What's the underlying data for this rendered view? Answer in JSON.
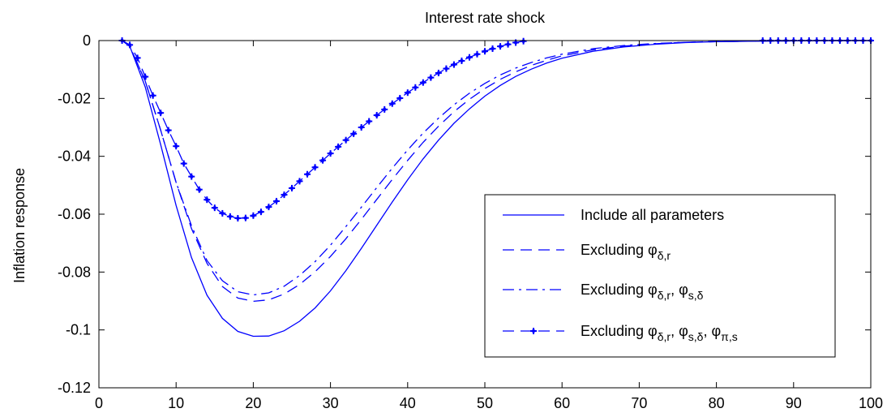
{
  "chart_data": {
    "type": "line",
    "title": "Interest rate shock",
    "xlabel": "",
    "ylabel": "Inflation response",
    "xlim": [
      0,
      100
    ],
    "ylim": [
      -0.12,
      0
    ],
    "grid": false,
    "x_ticks": [
      0,
      10,
      20,
      30,
      40,
      50,
      60,
      70,
      80,
      90,
      100
    ],
    "x_tick_labels": [
      "0",
      "10",
      "20",
      "30",
      "40",
      "50",
      "60",
      "70",
      "80",
      "90",
      "100"
    ],
    "y_ticks": [
      0,
      -0.02,
      -0.04,
      -0.06,
      -0.08,
      -0.1,
      -0.12
    ],
    "y_tick_labels": [
      "0",
      "-0.02",
      "-0.04",
      "-0.06",
      "-0.08",
      "-0.1",
      "-0.12"
    ],
    "line_color": "#0000ff",
    "legend_position": "bottom-right",
    "series": [
      {
        "name": "Include all parameters",
        "style": "solid",
        "x": [
          3,
          4,
          6,
          8,
          10,
          12,
          14,
          16,
          18,
          20,
          22,
          24,
          26,
          28,
          30,
          32,
          34,
          36,
          38,
          40,
          42,
          44,
          46,
          48,
          50,
          52,
          54,
          56,
          58,
          60,
          64,
          68,
          72,
          76,
          80,
          85,
          90,
          95,
          100
        ],
        "y": [
          0,
          -0.002,
          -0.016,
          -0.036,
          -0.057,
          -0.075,
          -0.088,
          -0.096,
          -0.1005,
          -0.1022,
          -0.1021,
          -0.1003,
          -0.097,
          -0.0924,
          -0.0865,
          -0.0795,
          -0.0718,
          -0.0638,
          -0.0558,
          -0.0481,
          -0.0409,
          -0.0344,
          -0.0286,
          -0.0236,
          -0.0192,
          -0.0155,
          -0.0124,
          -0.0099,
          -0.0078,
          -0.0061,
          -0.0037,
          -0.0022,
          -0.0013,
          -0.0007,
          -0.0004,
          -0.0002,
          -0.0001,
          0,
          0
        ]
      },
      {
        "name": "Excluding φ_{δ,r}",
        "style": "dashed",
        "x": [
          3,
          4,
          6,
          8,
          10,
          12,
          14,
          16,
          18,
          20,
          22,
          24,
          26,
          28,
          30,
          32,
          34,
          36,
          38,
          40,
          42,
          44,
          46,
          48,
          50,
          52,
          54,
          56,
          58,
          60,
          64,
          68,
          72,
          76,
          80,
          85,
          90,
          95,
          100
        ],
        "y": [
          0,
          -0.002,
          -0.014,
          -0.031,
          -0.049,
          -0.065,
          -0.077,
          -0.085,
          -0.089,
          -0.0901,
          -0.0896,
          -0.0876,
          -0.0843,
          -0.0799,
          -0.0746,
          -0.0685,
          -0.0618,
          -0.0549,
          -0.048,
          -0.0414,
          -0.0352,
          -0.0296,
          -0.0246,
          -0.0203,
          -0.0166,
          -0.0134,
          -0.0108,
          -0.0086,
          -0.0068,
          -0.0053,
          -0.0032,
          -0.0019,
          -0.0011,
          -0.0006,
          -0.0004,
          -0.0002,
          -0.0001,
          0,
          0
        ]
      },
      {
        "name": "Excluding φ_{δ,r}, φ_{s,δ}",
        "style": "dashdot",
        "x": [
          3,
          4,
          6,
          8,
          10,
          12,
          14,
          16,
          18,
          20,
          22,
          24,
          26,
          28,
          30,
          32,
          34,
          36,
          38,
          40,
          42,
          44,
          46,
          48,
          50,
          52,
          54,
          56,
          58,
          60,
          64,
          68,
          72,
          76,
          80,
          85,
          90,
          95,
          100
        ],
        "y": [
          0,
          -0.002,
          -0.014,
          -0.031,
          -0.049,
          -0.064,
          -0.076,
          -0.083,
          -0.0868,
          -0.0879,
          -0.0872,
          -0.0849,
          -0.0812,
          -0.0764,
          -0.0707,
          -0.0643,
          -0.0576,
          -0.0508,
          -0.0441,
          -0.0378,
          -0.032,
          -0.0268,
          -0.0222,
          -0.0182,
          -0.0148,
          -0.0119,
          -0.0095,
          -0.0076,
          -0.006,
          -0.0047,
          -0.0028,
          -0.0017,
          -0.001,
          -0.0006,
          -0.0003,
          -0.0002,
          -0.0001,
          0,
          0
        ]
      },
      {
        "name": "Excluding φ_{δ,r}, φ_{s,δ}, φ_{π,s}",
        "style": "dashed-markers",
        "x": [
          3,
          4,
          5,
          6,
          7,
          8,
          9,
          10,
          11,
          12,
          13,
          14,
          15,
          16,
          17,
          18,
          19,
          20,
          21,
          22,
          23,
          24,
          25,
          26,
          27,
          28,
          29,
          30,
          31,
          32,
          33,
          34,
          35,
          36,
          37,
          38,
          39,
          40,
          41,
          42,
          43,
          44,
          45,
          46,
          47,
          48,
          49,
          50,
          51,
          52,
          53,
          54,
          55
        ],
        "y": [
          0,
          -0.0015,
          -0.006,
          -0.0125,
          -0.019,
          -0.025,
          -0.031,
          -0.0365,
          -0.0425,
          -0.047,
          -0.0515,
          -0.055,
          -0.0578,
          -0.0597,
          -0.0608,
          -0.0614,
          -0.0613,
          -0.0605,
          -0.0592,
          -0.0575,
          -0.0555,
          -0.0533,
          -0.051,
          -0.0486,
          -0.0462,
          -0.0438,
          -0.0414,
          -0.039,
          -0.0367,
          -0.0344,
          -0.0322,
          -0.03,
          -0.0279,
          -0.0258,
          -0.0238,
          -0.0218,
          -0.0199,
          -0.018,
          -0.0162,
          -0.0145,
          -0.0128,
          -0.0112,
          -0.0097,
          -0.0083,
          -0.007,
          -0.0058,
          -0.0047,
          -0.0037,
          -0.0028,
          -0.002,
          -0.0013,
          -0.0007,
          -0.0002
        ]
      },
      {
        "name": "",
        "style": "dashed-markers",
        "x": [
          86,
          87,
          88,
          89,
          90,
          91,
          92,
          93,
          94,
          95,
          96,
          97,
          98,
          99,
          100
        ],
        "y": [
          0,
          0,
          0,
          0,
          0,
          0,
          0,
          0,
          0,
          0,
          0,
          0,
          0,
          0,
          0
        ]
      }
    ]
  }
}
